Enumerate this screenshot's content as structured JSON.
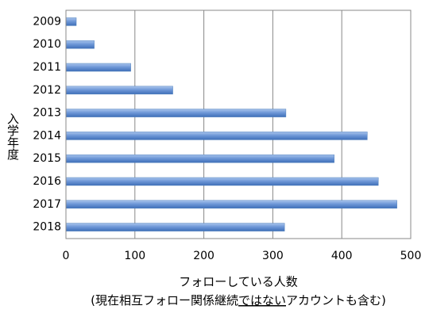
{
  "chart_data": {
    "type": "bar",
    "orientation": "horizontal",
    "categories": [
      "2009",
      "2010",
      "2011",
      "2012",
      "2013",
      "2014",
      "2015",
      "2016",
      "2017",
      "2018"
    ],
    "values": [
      15,
      41,
      94,
      155,
      319,
      437,
      389,
      453,
      480,
      317
    ],
    "color": "#4f81bd",
    "xlim": [
      0,
      500
    ],
    "xticks": [
      0,
      100,
      200,
      300,
      400,
      500
    ],
    "grid": true,
    "ylabel": "入学年度",
    "xlabel": "フォローしている人数",
    "xlabel_note": {
      "before": "(現在相互フォロー関係継続",
      "underlined": "ではない",
      "after": "アカウントも含む)"
    }
  }
}
